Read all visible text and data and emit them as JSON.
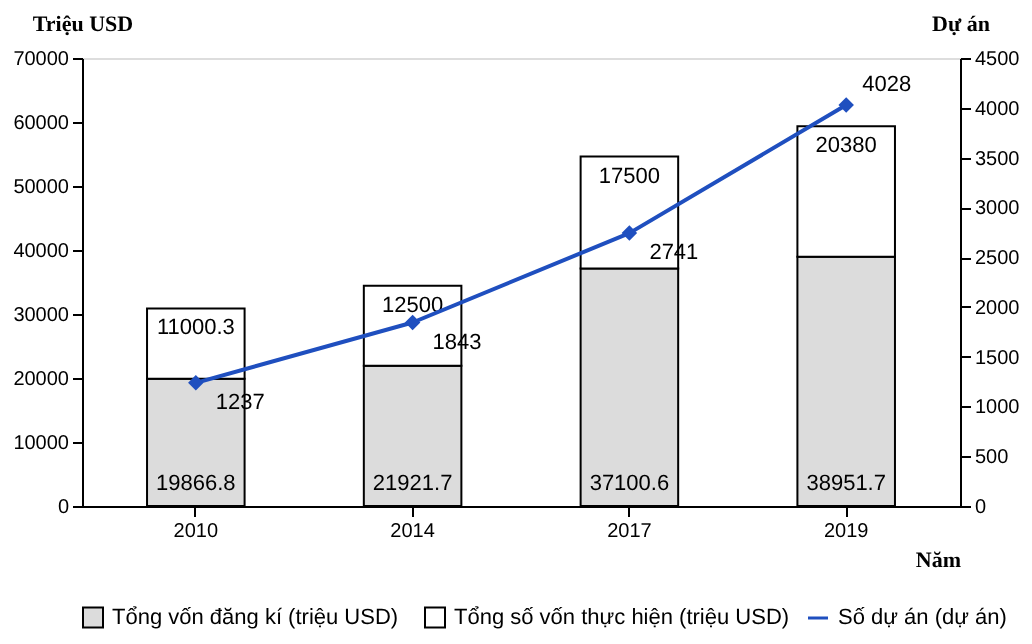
{
  "chart_data": {
    "type": "bar",
    "stacked": true,
    "categories": [
      "2010",
      "2014",
      "2017",
      "2019"
    ],
    "xlabel": "Năm",
    "ylabel": "Triệu USD",
    "y2label": "Dự án",
    "ylim": [
      0,
      70000
    ],
    "yticks": [
      0,
      10000,
      20000,
      30000,
      40000,
      50000,
      60000,
      70000
    ],
    "y2lim": [
      0,
      4500
    ],
    "y2ticks": [
      0,
      500,
      1000,
      1500,
      2000,
      2500,
      3000,
      3500,
      4000,
      4500
    ],
    "series": [
      {
        "name": "Tổng vốn đăng kí (triệu USD)",
        "color": "#dcdcdc",
        "values": [
          19866.8,
          21921.7,
          37100.6,
          38951.7
        ]
      },
      {
        "name": "Tổng số vốn thực hiện (triệu USD)",
        "color": "#ffffff",
        "values": [
          11000.3,
          12500,
          17500,
          20380
        ]
      },
      {
        "name": "Số dự án (dự án)",
        "type": "line",
        "axis": "y2",
        "color": "#1f4fbf",
        "marker": "diamond",
        "values": [
          1237,
          1843,
          2741,
          4028
        ]
      }
    ],
    "data_labels": true,
    "legend": "bottom",
    "grid": false
  }
}
